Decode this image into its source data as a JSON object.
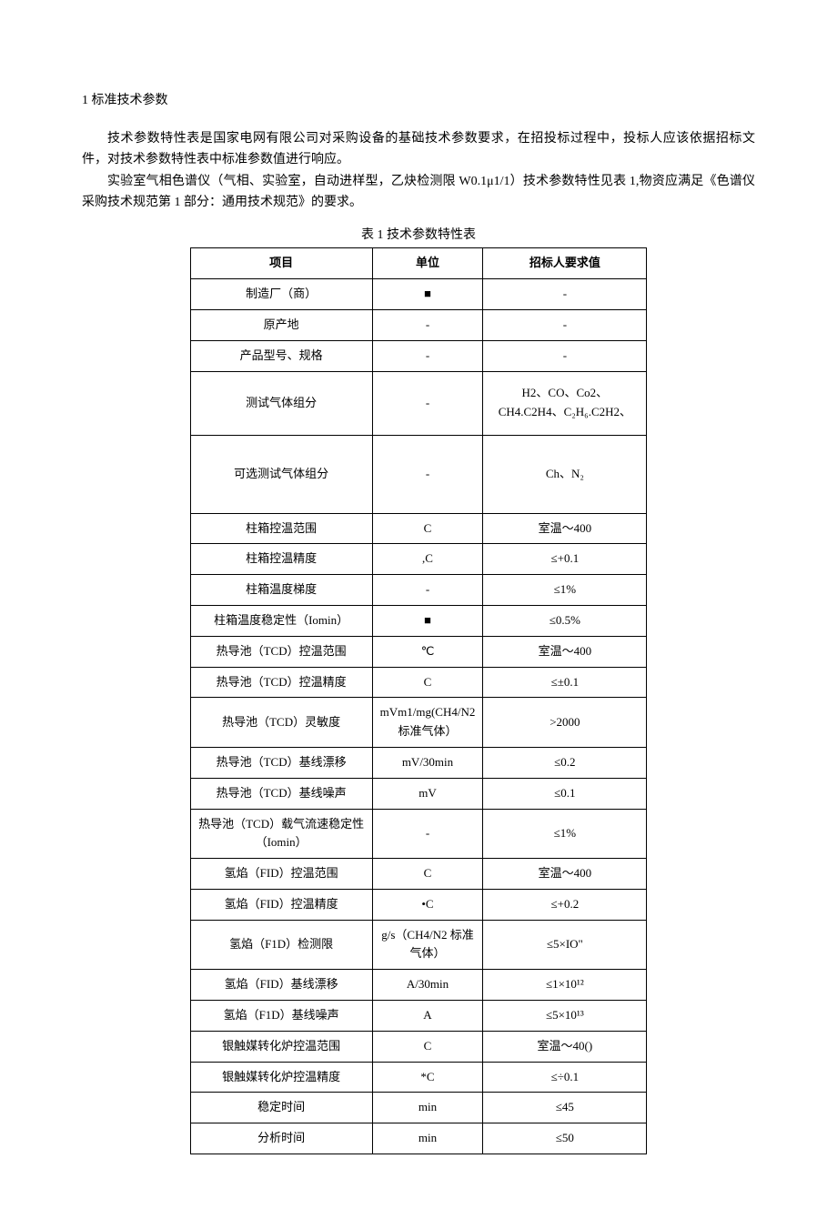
{
  "heading": "1 标准技术参数",
  "para1": "技术参数特性表是国家电网有限公司对采购设备的基础技术参数要求，在招投标过程中，投标人应该依据招标文件，对技术参数特性表中标准参数值进行响应。",
  "para2": "实验室气相色谱仪（气相、实验室，自动进样型，乙炔检测限 W0.1μ1/1）技术参数特性见表 1,物资应满足《色谱仪采购技术规范第 1 部分：通用技术规范》的要求。",
  "tableTitle": "表 1 技术参数特性表",
  "headers": {
    "c1": "项目",
    "c2": "单位",
    "c3": "招标人要求值"
  },
  "rows": [
    {
      "c1": "制造厂（商）",
      "c2": "■",
      "c3": "-"
    },
    {
      "c1": "原产地",
      "c2": "-",
      "c3": "-"
    },
    {
      "c1": "产品型号、规格",
      "c2": "-",
      "c3": "-"
    },
    {
      "c1": "测试气体组分",
      "c2": "-",
      "c3": "H2、CO、Co2、CH4.C2H4、C₂H₆.C2H2、",
      "tall": true
    },
    {
      "c1": "可选测试气体组分",
      "c2": "-",
      "c3": "Ch、N₂",
      "taller": true
    },
    {
      "c1": "柱箱控温范围",
      "c2": "C",
      "c3": "室温～400"
    },
    {
      "c1": "柱箱控温精度",
      "c2": ",C",
      "c3": "≤+0.1"
    },
    {
      "c1": "柱箱温度梯度",
      "c2": "-",
      "c3": "≤1%"
    },
    {
      "c1": "柱箱温度稳定性（Iomin）",
      "c2": "■",
      "c3": "≤0.5%"
    },
    {
      "c1": "热导池（TCD）控温范围",
      "c2": "℃",
      "c3": "室温～400"
    },
    {
      "c1": "热导池（TCD）控温精度",
      "c2": "C",
      "c3": "≤±0.1"
    },
    {
      "c1": "热导池（TCD）灵敏度",
      "c2": "mVm1/mg(CH4/N2 标准气体）",
      "c3": ">2000"
    },
    {
      "c1": "热导池（TCD）基线漂移",
      "c2": "mV/30min",
      "c3": "≤0.2"
    },
    {
      "c1": "热导池（TCD）基线噪声",
      "c2": "mV",
      "c3": "≤0.1"
    },
    {
      "c1": "热导池（TCD）载气流速稳定性（Iomin）",
      "c2": "-",
      "c3": "≤1%"
    },
    {
      "c1": "氢焰（FID）控温范围",
      "c2": "C",
      "c3": "室温～400"
    },
    {
      "c1": "氢焰（FID）控温精度",
      "c2": "•C",
      "c3": "≤+0.2"
    },
    {
      "c1": "氢焰（F1D）检测限",
      "c2": "g/s（CH4/N2 标准气体）",
      "c3": "≤5×IO\""
    },
    {
      "c1": "氢焰（FID）基线漂移",
      "c2": "A/30min",
      "c3": "≤1×10¹²"
    },
    {
      "c1": "氢焰（F1D）基线噪声",
      "c2": "A",
      "c3": "≤5×10¹³"
    },
    {
      "c1": "银触媒转化炉控温范围",
      "c2": "C",
      "c3": "室温～40()"
    },
    {
      "c1": "银触媒转化炉控温精度",
      "c2": "*C",
      "c3": "≤÷0.1"
    },
    {
      "c1": "稳定时间",
      "c2": "min",
      "c3": "≤45"
    },
    {
      "c1": "分析时间",
      "c2": "min",
      "c3": "≤50"
    }
  ]
}
